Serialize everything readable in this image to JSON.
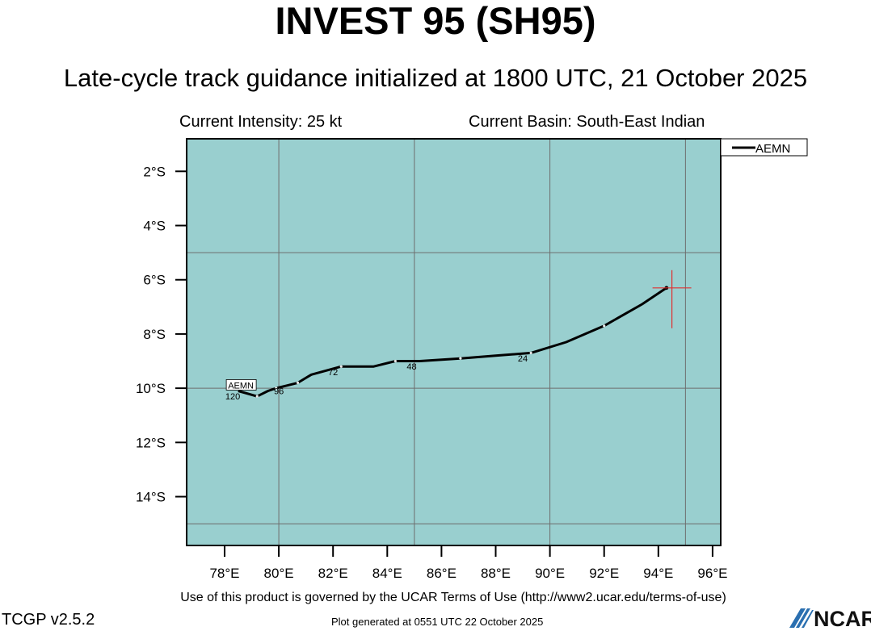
{
  "title": "INVEST 95 (SH95)",
  "subtitle": "Late-cycle track guidance initialized at 1800 UTC, 21 October 2025",
  "current_intensity": "Current Intensity: 25 kt",
  "current_basin": "Current Basin: South-East Indian",
  "terms": "Use of this product is governed by the UCAR Terms of Use (http://www2.ucar.edu/terms-of-use)",
  "version": "TCGP v2.5.2",
  "generated": "Plot generated at 0551 UTC   22 October 2025",
  "logo_text": "NCAR",
  "colors": {
    "ocean": "#99cfcf",
    "grid": "#6e6e6e",
    "track": "#000000",
    "marker": "#e03030"
  },
  "map": {
    "lon_range": [
      76.6,
      96.3
    ],
    "lat_range": [
      -15.8,
      -0.8
    ],
    "x_ticks": [
      {
        "value": 78,
        "label": "78°E"
      },
      {
        "value": 80,
        "label": "80°E"
      },
      {
        "value": 82,
        "label": "82°E"
      },
      {
        "value": 84,
        "label": "84°E"
      },
      {
        "value": 86,
        "label": "86°E"
      },
      {
        "value": 88,
        "label": "88°E"
      },
      {
        "value": 90,
        "label": "90°E"
      },
      {
        "value": 92,
        "label": "92°E"
      },
      {
        "value": 94,
        "label": "94°E"
      },
      {
        "value": 96,
        "label": "96°E"
      }
    ],
    "y_ticks": [
      {
        "value": -2,
        "label": "2°S"
      },
      {
        "value": -4,
        "label": "4°S"
      },
      {
        "value": -6,
        "label": "6°S"
      },
      {
        "value": -8,
        "label": "8°S"
      },
      {
        "value": -10,
        "label": "10°S"
      },
      {
        "value": -12,
        "label": "12°S"
      },
      {
        "value": -14,
        "label": "14°S"
      }
    ],
    "grid_lon": [
      80,
      85,
      90,
      95
    ],
    "grid_lat": [
      -5,
      -10,
      -15
    ],
    "current_position": {
      "lon": 94.5,
      "lat": -6.3
    }
  },
  "track": {
    "model": "AEMN",
    "points": [
      {
        "lon": 94.3,
        "lat": -6.3
      },
      {
        "lon": 93.4,
        "lat": -6.9
      },
      {
        "lon": 92.0,
        "lat": -7.7
      },
      {
        "lon": 90.6,
        "lat": -8.3
      },
      {
        "lon": 89.3,
        "lat": -8.7
      },
      {
        "lon": 88.0,
        "lat": -8.8
      },
      {
        "lon": 86.7,
        "lat": -8.9
      },
      {
        "lon": 85.2,
        "lat": -9.0
      },
      {
        "lon": 84.3,
        "lat": -9.0
      },
      {
        "lon": 83.5,
        "lat": -9.2
      },
      {
        "lon": 82.3,
        "lat": -9.2
      },
      {
        "lon": 81.2,
        "lat": -9.5
      },
      {
        "lon": 80.7,
        "lat": -9.8
      },
      {
        "lon": 80.3,
        "lat": -9.9
      },
      {
        "lon": 79.9,
        "lat": -10.0
      },
      {
        "lon": 79.6,
        "lat": -10.1
      },
      {
        "lon": 79.2,
        "lat": -10.3
      },
      {
        "lon": 78.5,
        "lat": -10.1
      }
    ],
    "hour_labels": [
      {
        "text": "24",
        "lon": 89.0,
        "lat": -8.9
      },
      {
        "text": "48",
        "lon": 84.9,
        "lat": -9.2
      },
      {
        "text": "72",
        "lon": 82.0,
        "lat": -9.4
      },
      {
        "text": "96",
        "lon": 80.0,
        "lat": -10.1
      },
      {
        "text": "120",
        "lon": 78.3,
        "lat": -10.3
      }
    ],
    "end_tag": {
      "lon": 78.6,
      "lat": -9.95
    }
  },
  "legend": {
    "entry": "AEMN"
  }
}
